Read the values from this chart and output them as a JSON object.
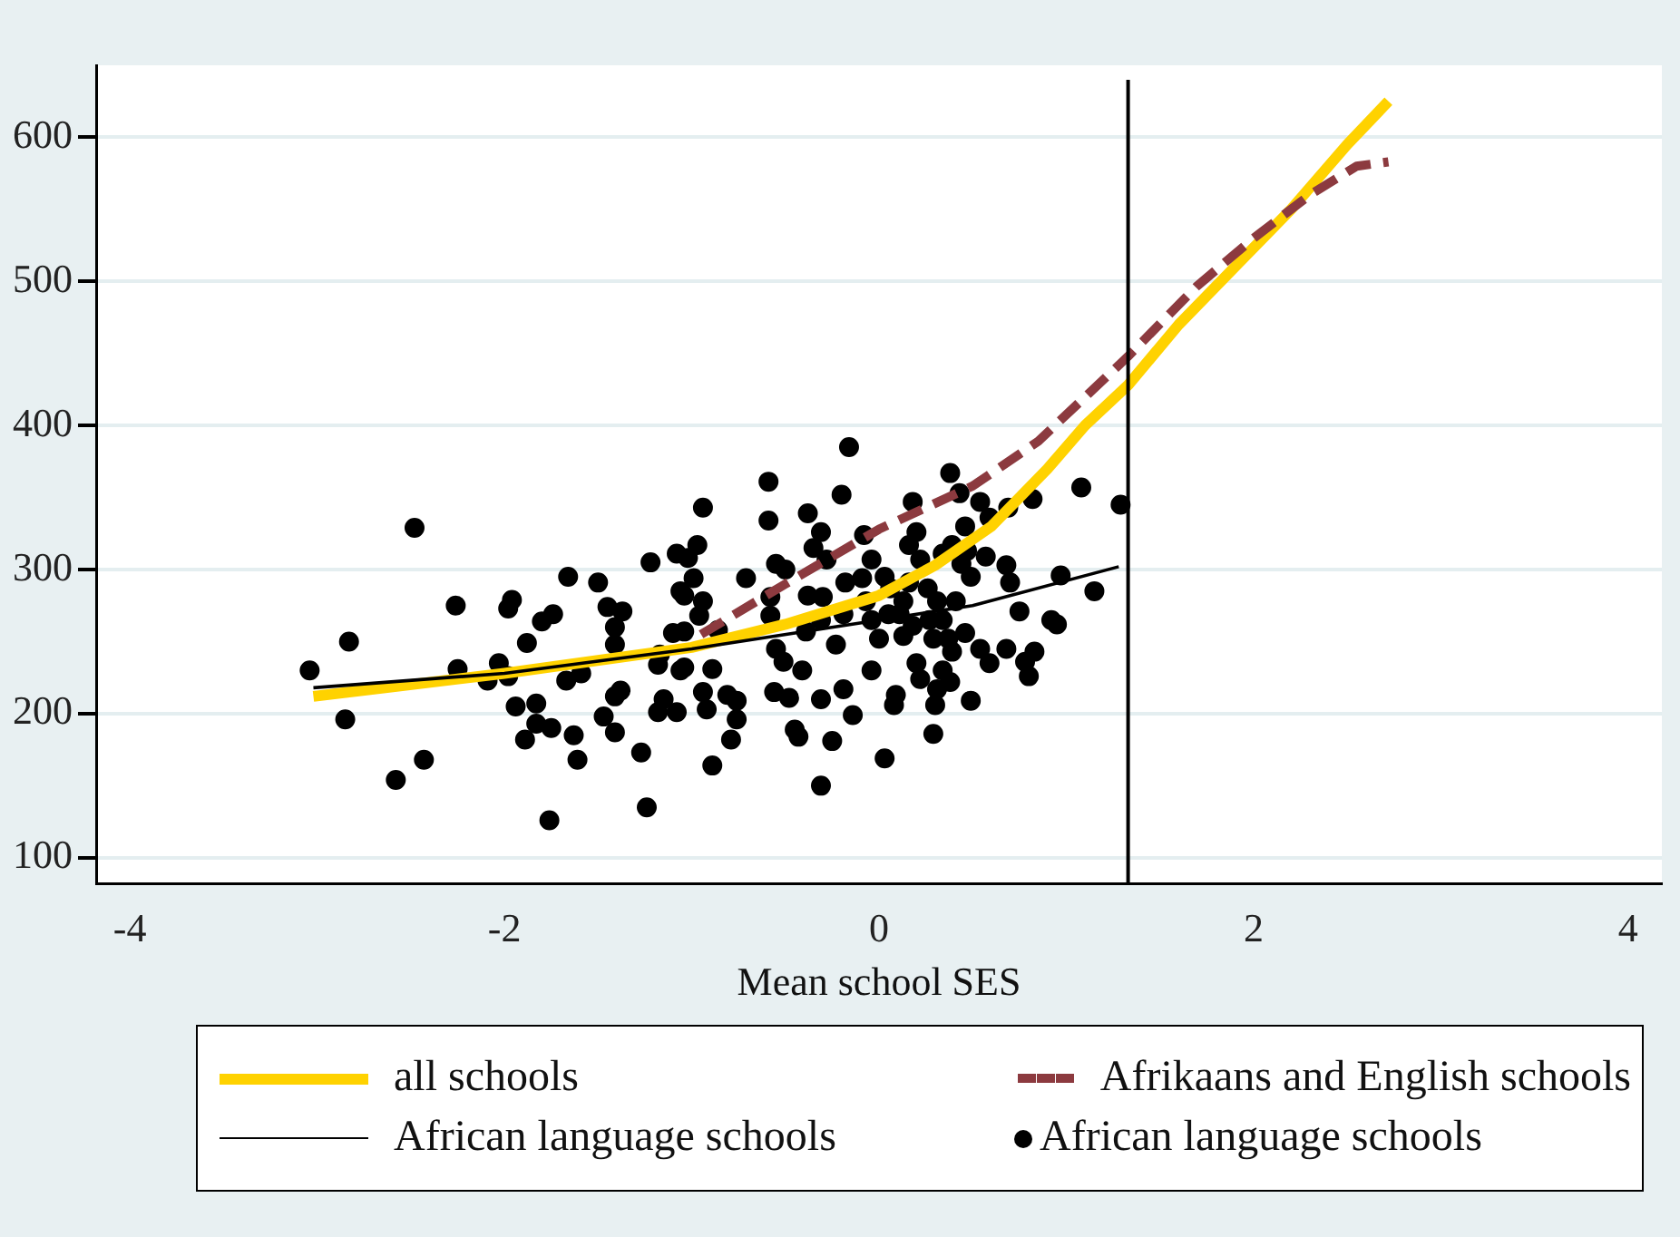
{
  "chart_data": {
    "type": "scatter",
    "xlabel": "Mean school SES",
    "xlim": [
      -4.18,
      4.18
    ],
    "xticks": [
      -4,
      -2,
      0,
      2,
      4
    ],
    "ylim": [
      82,
      650
    ],
    "yticks": [
      100,
      200,
      300,
      400,
      500,
      600
    ],
    "grid": "y",
    "legend": "bottom",
    "marker": "circle",
    "ref_lines": [
      {
        "axis": "x",
        "value": 1.33,
        "color": "#000000"
      }
    ],
    "series": [
      {
        "name": "all schools",
        "type": "line",
        "color": "#ffd200",
        "line_style": "solid",
        "marker": "none",
        "x": [
          -3.02,
          -2,
          -1,
          -0.5,
          0,
          0.3,
          0.6,
          0.9,
          1.1,
          1.33,
          1.6,
          1.9,
          2.2,
          2.5,
          2.72
        ],
        "values": [
          212,
          228,
          246,
          262,
          282,
          303,
          330,
          370,
          400,
          428,
          470,
          510,
          550,
          595,
          625
        ]
      },
      {
        "name": "Afrikaans and English schools",
        "type": "line",
        "color": "#8c3a3f",
        "line_style": "dashed",
        "marker": "none",
        "x": [
          -0.95,
          -0.5,
          0,
          0.5,
          0.85,
          1.33,
          1.7,
          2.0,
          2.3,
          2.55,
          2.72
        ],
        "values": [
          255,
          290,
          328,
          358,
          389,
          448,
          497,
          530,
          560,
          580,
          583
        ]
      },
      {
        "name": "African language schools",
        "type": "line",
        "color": "#000000",
        "line_style": "solid",
        "marker": "none",
        "x": [
          -3.02,
          -2,
          -1,
          0,
          0.5,
          1.28
        ],
        "values": [
          218,
          228,
          245,
          265,
          275,
          302
        ]
      },
      {
        "name": "African language schools",
        "type": "scatter",
        "color": "#000000",
        "x": [
          -2.48,
          -3.04,
          -2.83,
          -2.85,
          -2.43,
          -2.58,
          -2.26,
          -2.25,
          -2.09,
          -2.03,
          -1.98,
          -1.96,
          -1.98,
          -1.94,
          -1.88,
          -1.83,
          -1.83,
          -1.75,
          -1.89,
          -1.8,
          -1.74,
          -1.66,
          -1.5,
          -1.76,
          -1.67,
          -1.59,
          -1.63,
          -1.61,
          -1.45,
          -1.41,
          -1.37,
          -1.41,
          -1.38,
          -1.41,
          -1.47,
          -1.41,
          -1.27,
          -1.24,
          -1.22,
          -1.08,
          -1.04,
          -1.1,
          -1.17,
          -1.18,
          -1.06,
          -1.15,
          -1.18,
          -1.08,
          -0.94,
          -0.97,
          -1.02,
          -0.99,
          -1.06,
          -0.94,
          -0.96,
          -1.04,
          -0.86,
          -0.89,
          -1.04,
          -0.94,
          -0.92,
          -0.81,
          -0.76,
          -0.76,
          -0.79,
          -0.89,
          -0.71,
          -0.59,
          -0.59,
          -0.55,
          -0.5,
          -0.58,
          -0.58,
          -0.55,
          -0.51,
          -0.56,
          -0.48,
          -0.43,
          -0.45,
          -0.41,
          -0.38,
          -0.39,
          -0.31,
          -0.35,
          -0.28,
          -0.38,
          -0.3,
          -0.31,
          -0.31,
          -0.25,
          -0.31,
          -0.2,
          -0.16,
          -0.18,
          -0.19,
          -0.23,
          -0.19,
          -0.14,
          -0.08,
          -0.04,
          -0.09,
          -0.07,
          -0.04,
          0,
          -0.04,
          0.03,
          0.09,
          0.08,
          0.03,
          0.06,
          0.05,
          0.11,
          0.18,
          0.2,
          0.16,
          0.22,
          0.16,
          0.13,
          0.18,
          0.13,
          0.2,
          0.22,
          0.29,
          0.31,
          0.3,
          0.34,
          0.38,
          0.26,
          0.31,
          0.34,
          0.27,
          0.29,
          0.37,
          0.41,
          0.39,
          0.34,
          0.38,
          0.43,
          0.46,
          0.47,
          0.44,
          0.49,
          0.46,
          0.39,
          0.49,
          0.54,
          0.59,
          0.69,
          0.82,
          0.57,
          0.68,
          0.7,
          0.54,
          0.59,
          0.68,
          0.75,
          0.78,
          0.83,
          0.8,
          0.92,
          0.97,
          0.95,
          1.08,
          1.15,
          1.29
        ],
        "values": [
          329,
          230,
          250,
          196,
          168,
          154,
          275,
          231,
          223,
          235,
          226,
          279,
          273,
          205,
          249,
          207,
          193,
          190,
          182,
          264,
          269,
          295,
          291,
          126,
          223,
          228,
          185,
          168,
          274,
          260,
          271,
          248,
          216,
          212,
          198,
          187,
          173,
          135,
          305,
          311,
          282,
          256,
          241,
          234,
          230,
          210,
          201,
          201,
          343,
          317,
          308,
          294,
          285,
          278,
          268,
          257,
          258,
          231,
          232,
          215,
          203,
          213,
          209,
          196,
          182,
          164,
          294,
          361,
          334,
          304,
          300,
          281,
          268,
          245,
          236,
          215,
          211,
          184,
          189,
          230,
          339,
          257,
          326,
          315,
          307,
          282,
          281,
          265,
          210,
          181,
          150,
          352,
          385,
          291,
          269,
          248,
          217,
          199,
          324,
          307,
          294,
          278,
          265,
          252,
          230,
          169,
          213,
          206,
          295,
          287,
          269,
          269,
          347,
          326,
          317,
          307,
          291,
          278,
          261,
          254,
          235,
          224,
          186,
          217,
          206,
          230,
          222,
          287,
          278,
          265,
          265,
          252,
          252,
          278,
          317,
          311,
          367,
          353,
          330,
          313,
          304,
          295,
          256,
          243,
          209,
          347,
          336,
          343,
          349,
          309,
          303,
          291,
          245,
          235,
          245,
          271,
          236,
          243,
          226,
          265,
          296,
          262,
          357,
          285,
          345
        ]
      }
    ]
  }
}
